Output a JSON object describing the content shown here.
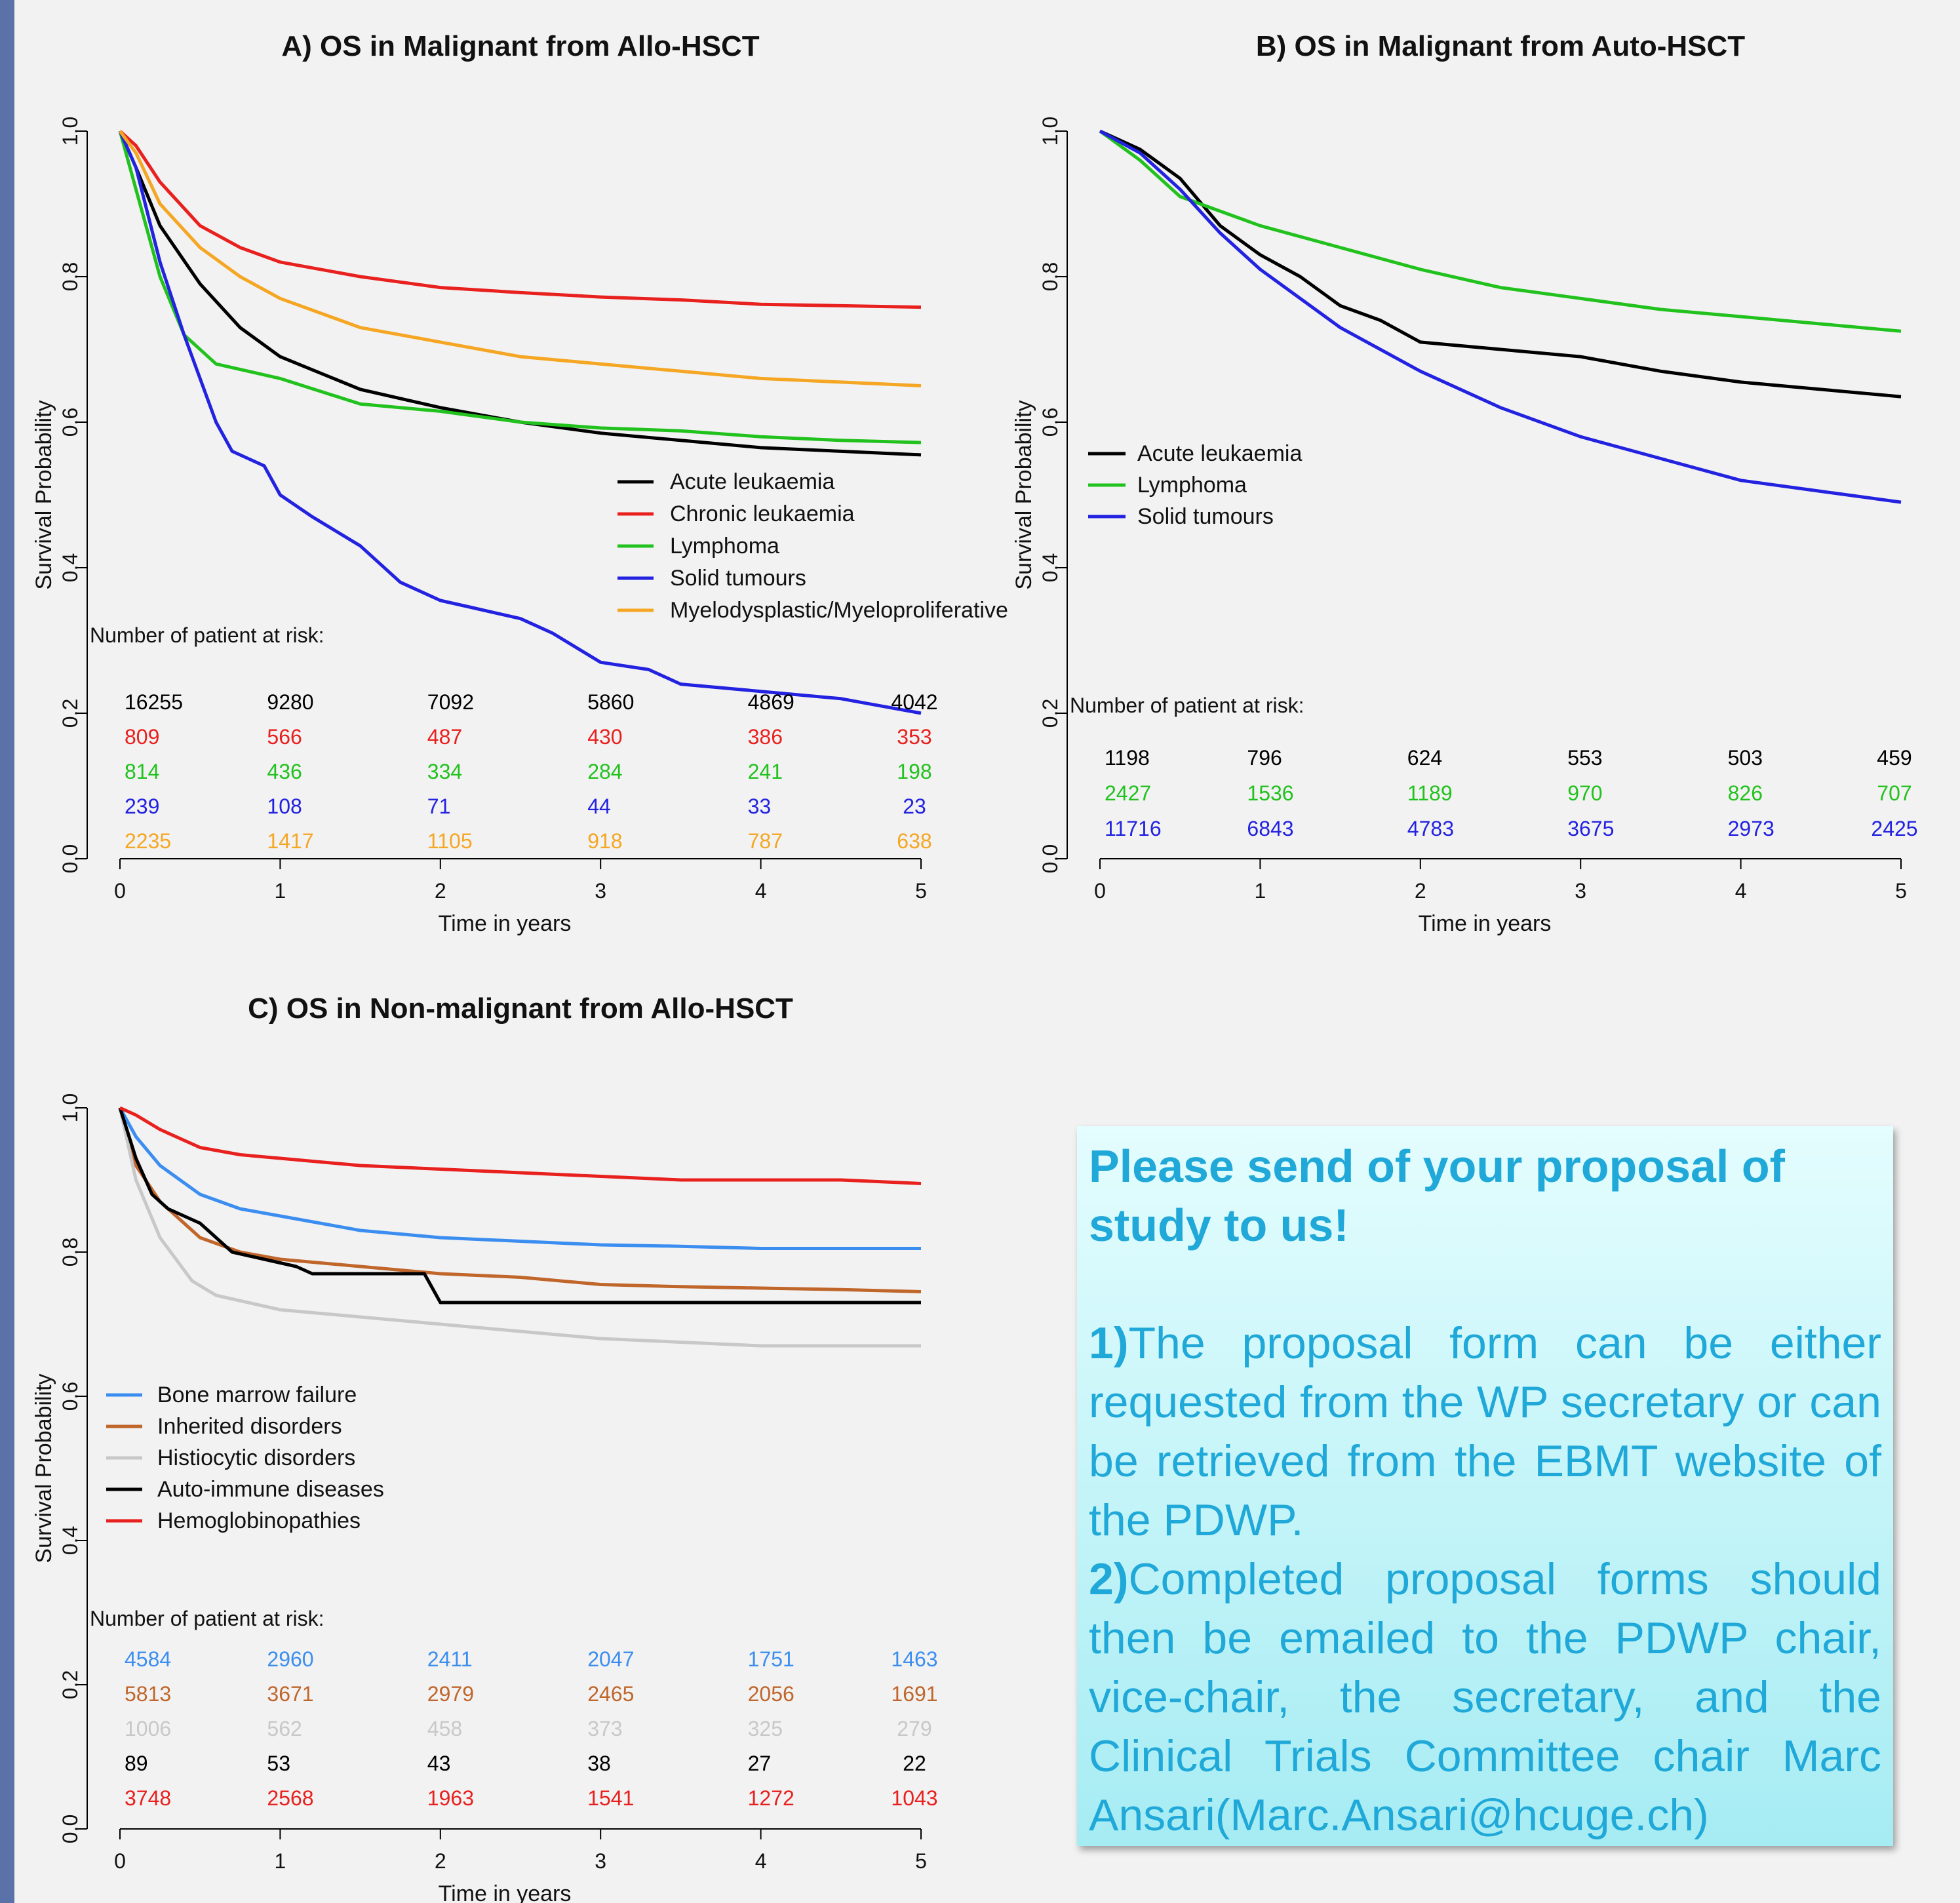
{
  "colors": {
    "black": "#000000",
    "red": "#e8201e",
    "green": "#22c21e",
    "blue": "#2222e0",
    "orange": "#f5a623",
    "lightblue": "#3b8ef0",
    "brown": "#c0662b",
    "grey": "#c8c8c8",
    "sidebar": "#5b72a8",
    "proposal_text": "#1fa8d8"
  },
  "risk_header": "Number of patient at risk:",
  "chart_data": [
    {
      "id": "A",
      "type": "line",
      "title": "A) OS in Malignant from Allo-HSCT",
      "xlabel": "Time in years",
      "ylabel": "Survival Probability",
      "xlim": [
        0,
        5
      ],
      "ylim": [
        0,
        1
      ],
      "xticks": [
        "0",
        "1",
        "2",
        "3",
        "4",
        "5"
      ],
      "yticks": [
        "0.0",
        "0.2",
        "0.4",
        "0.6",
        "0.8",
        "1.0"
      ],
      "legend_position": "right-middle",
      "series": [
        {
          "name": "Acute leukaemia",
          "color": "black",
          "x": [
            0,
            0.1,
            0.25,
            0.5,
            0.75,
            1,
            1.5,
            2,
            2.5,
            3,
            3.5,
            4,
            4.5,
            5
          ],
          "y": [
            1.0,
            0.95,
            0.87,
            0.79,
            0.73,
            0.69,
            0.645,
            0.62,
            0.6,
            0.585,
            0.575,
            0.565,
            0.56,
            0.555
          ],
          "risk": [
            "16255",
            "9280",
            "7092",
            "5860",
            "4869",
            "4042"
          ]
        },
        {
          "name": "Chronic leukaemia",
          "color": "red",
          "x": [
            0,
            0.1,
            0.25,
            0.5,
            0.75,
            1,
            1.5,
            2,
            2.5,
            3,
            3.5,
            4,
            4.5,
            5
          ],
          "y": [
            1.0,
            0.98,
            0.93,
            0.87,
            0.84,
            0.82,
            0.8,
            0.785,
            0.778,
            0.772,
            0.768,
            0.762,
            0.76,
            0.758
          ],
          "risk": [
            "809",
            "566",
            "487",
            "430",
            "386",
            "353"
          ]
        },
        {
          "name": "Lymphoma",
          "color": "green",
          "x": [
            0,
            0.1,
            0.25,
            0.4,
            0.6,
            1,
            1.5,
            2,
            2.5,
            3,
            3.5,
            4,
            4.5,
            5
          ],
          "y": [
            1.0,
            0.92,
            0.8,
            0.72,
            0.68,
            0.66,
            0.625,
            0.615,
            0.6,
            0.592,
            0.588,
            0.58,
            0.575,
            0.572
          ],
          "risk": [
            "814",
            "436",
            "334",
            "284",
            "241",
            "198"
          ]
        },
        {
          "name": "Solid tumours",
          "color": "blue",
          "x": [
            0,
            0.1,
            0.25,
            0.4,
            0.6,
            0.7,
            0.9,
            1,
            1.2,
            1.5,
            1.75,
            2,
            2.2,
            2.5,
            2.7,
            3,
            3.3,
            3.5,
            4,
            4.5,
            4.75,
            5
          ],
          "y": [
            1.0,
            0.95,
            0.82,
            0.72,
            0.6,
            0.56,
            0.54,
            0.5,
            0.47,
            0.43,
            0.38,
            0.355,
            0.345,
            0.33,
            0.31,
            0.27,
            0.26,
            0.24,
            0.23,
            0.22,
            0.21,
            0.2
          ],
          "risk": [
            "239",
            "108",
            "71",
            "44",
            "33",
            "23"
          ]
        },
        {
          "name": "Myelodysplastic/Myeloproliferative",
          "color": "orange",
          "x": [
            0,
            0.1,
            0.25,
            0.5,
            0.75,
            1,
            1.5,
            2,
            2.5,
            3,
            3.5,
            4,
            4.5,
            5
          ],
          "y": [
            1.0,
            0.97,
            0.9,
            0.84,
            0.8,
            0.77,
            0.73,
            0.71,
            0.69,
            0.68,
            0.67,
            0.66,
            0.655,
            0.65
          ],
          "risk": [
            "2235",
            "1417",
            "1105",
            "918",
            "787",
            "638"
          ]
        }
      ]
    },
    {
      "id": "B",
      "type": "line",
      "title": "B) OS in Malignant from Auto-HSCT",
      "xlabel": "Time in years",
      "ylabel": "Survival Probability",
      "xlim": [
        0,
        5
      ],
      "ylim": [
        0,
        1
      ],
      "xticks": [
        "0",
        "1",
        "2",
        "3",
        "4",
        "5"
      ],
      "yticks": [
        "0.0",
        "0.2",
        "0.4",
        "0.6",
        "0.8",
        "1.0"
      ],
      "legend_position": "left-middle",
      "series": [
        {
          "name": "Acute leukaemia",
          "color": "black",
          "x": [
            0,
            0.25,
            0.5,
            0.75,
            1,
            1.25,
            1.5,
            1.75,
            2,
            2.5,
            3,
            3.5,
            4,
            4.5,
            5
          ],
          "y": [
            1.0,
            0.975,
            0.935,
            0.87,
            0.83,
            0.8,
            0.76,
            0.74,
            0.71,
            0.7,
            0.69,
            0.67,
            0.655,
            0.645,
            0.635
          ],
          "risk": [
            "1198",
            "796",
            "624",
            "553",
            "503",
            "459"
          ]
        },
        {
          "name": "Lymphoma",
          "color": "green",
          "x": [
            0,
            0.25,
            0.5,
            0.75,
            1,
            1.5,
            2,
            2.5,
            3,
            3.5,
            4,
            4.5,
            5
          ],
          "y": [
            1.0,
            0.96,
            0.91,
            0.89,
            0.87,
            0.84,
            0.81,
            0.785,
            0.77,
            0.755,
            0.745,
            0.735,
            0.725
          ],
          "risk": [
            "2427",
            "1536",
            "1189",
            "970",
            "826",
            "707"
          ]
        },
        {
          "name": "Solid tumours",
          "color": "blue",
          "x": [
            0,
            0.25,
            0.5,
            0.75,
            1,
            1.5,
            2,
            2.5,
            3,
            3.5,
            4,
            4.5,
            5
          ],
          "y": [
            1.0,
            0.97,
            0.92,
            0.86,
            0.81,
            0.73,
            0.67,
            0.62,
            0.58,
            0.55,
            0.52,
            0.505,
            0.49
          ],
          "risk": [
            "11716",
            "6843",
            "4783",
            "3675",
            "2973",
            "2425"
          ]
        }
      ]
    },
    {
      "id": "C",
      "type": "line",
      "title": "C) OS in Non-malignant from Allo-HSCT",
      "xlabel": "Time in years",
      "ylabel": "Survival Probability",
      "xlim": [
        0,
        5
      ],
      "ylim": [
        0,
        1
      ],
      "xticks": [
        "0",
        "1",
        "2",
        "3",
        "4",
        "5"
      ],
      "yticks": [
        "0.0",
        "0.2",
        "0.4",
        "0.6",
        "0.8",
        "1.0"
      ],
      "legend_position": "left-middle",
      "series": [
        {
          "name": "Bone marrow failure",
          "color": "lightblue",
          "x": [
            0,
            0.1,
            0.25,
            0.5,
            0.75,
            1,
            1.5,
            2,
            2.5,
            3,
            3.5,
            4,
            4.5,
            5
          ],
          "y": [
            1.0,
            0.96,
            0.92,
            0.88,
            0.86,
            0.85,
            0.83,
            0.82,
            0.815,
            0.81,
            0.808,
            0.805,
            0.805,
            0.805
          ],
          "risk": [
            "4584",
            "2960",
            "2411",
            "2047",
            "1751",
            "1463"
          ]
        },
        {
          "name": "Inherited disorders",
          "color": "brown",
          "x": [
            0,
            0.1,
            0.25,
            0.5,
            0.75,
            1,
            1.5,
            2,
            2.5,
            3,
            3.5,
            4,
            4.5,
            5
          ],
          "y": [
            1.0,
            0.92,
            0.87,
            0.82,
            0.8,
            0.79,
            0.78,
            0.77,
            0.765,
            0.755,
            0.752,
            0.75,
            0.748,
            0.745
          ],
          "risk": [
            "5813",
            "3671",
            "2979",
            "2465",
            "2056",
            "1691"
          ]
        },
        {
          "name": "Histiocytic disorders",
          "color": "grey",
          "x": [
            0,
            0.1,
            0.25,
            0.45,
            0.6,
            1,
            1.5,
            2,
            2.5,
            3,
            3.5,
            4,
            4.5,
            5
          ],
          "y": [
            1.0,
            0.9,
            0.82,
            0.76,
            0.74,
            0.72,
            0.71,
            0.7,
            0.69,
            0.68,
            0.675,
            0.67,
            0.67,
            0.67
          ],
          "risk": [
            "1006",
            "562",
            "458",
            "373",
            "325",
            "279"
          ]
        },
        {
          "name": "Auto-immune diseases",
          "color": "black",
          "x": [
            0,
            0.1,
            0.2,
            0.3,
            0.5,
            0.7,
            0.9,
            1.1,
            1.2,
            1.5,
            1.9,
            2.0,
            2.5,
            3,
            3.5,
            4,
            4.5,
            5
          ],
          "y": [
            1.0,
            0.93,
            0.88,
            0.86,
            0.84,
            0.8,
            0.79,
            0.78,
            0.77,
            0.77,
            0.77,
            0.73,
            0.73,
            0.73,
            0.73,
            0.73,
            0.73,
            0.73
          ],
          "risk": [
            "89",
            "53",
            "43",
            "38",
            "27",
            "22"
          ]
        },
        {
          "name": "Hemoglobinopathies",
          "color": "red",
          "x": [
            0,
            0.1,
            0.25,
            0.5,
            0.75,
            1,
            1.5,
            2,
            2.5,
            3,
            3.5,
            4,
            4.5,
            5
          ],
          "y": [
            1.0,
            0.99,
            0.97,
            0.945,
            0.935,
            0.93,
            0.92,
            0.915,
            0.91,
            0.905,
            0.9,
            0.9,
            0.9,
            0.895
          ],
          "risk": [
            "3748",
            "2568",
            "1963",
            "1541",
            "1272",
            "1043"
          ]
        }
      ]
    }
  ],
  "proposal": {
    "heading": "Please send of your proposal of study to us!",
    "item1_num": "1)",
    "item1_text": "The proposal form can be either requested from the WP secretary or can be retrieved from the EBMT website of the PDWP.",
    "item2_num": "2)",
    "item2_text": "Completed proposal forms should then be emailed to the PDWP chair, vice-chair, the secretary, and the Clinical Trials Committee chair  Marc Ansari(Marc.Ansari@hcuge.ch)"
  }
}
